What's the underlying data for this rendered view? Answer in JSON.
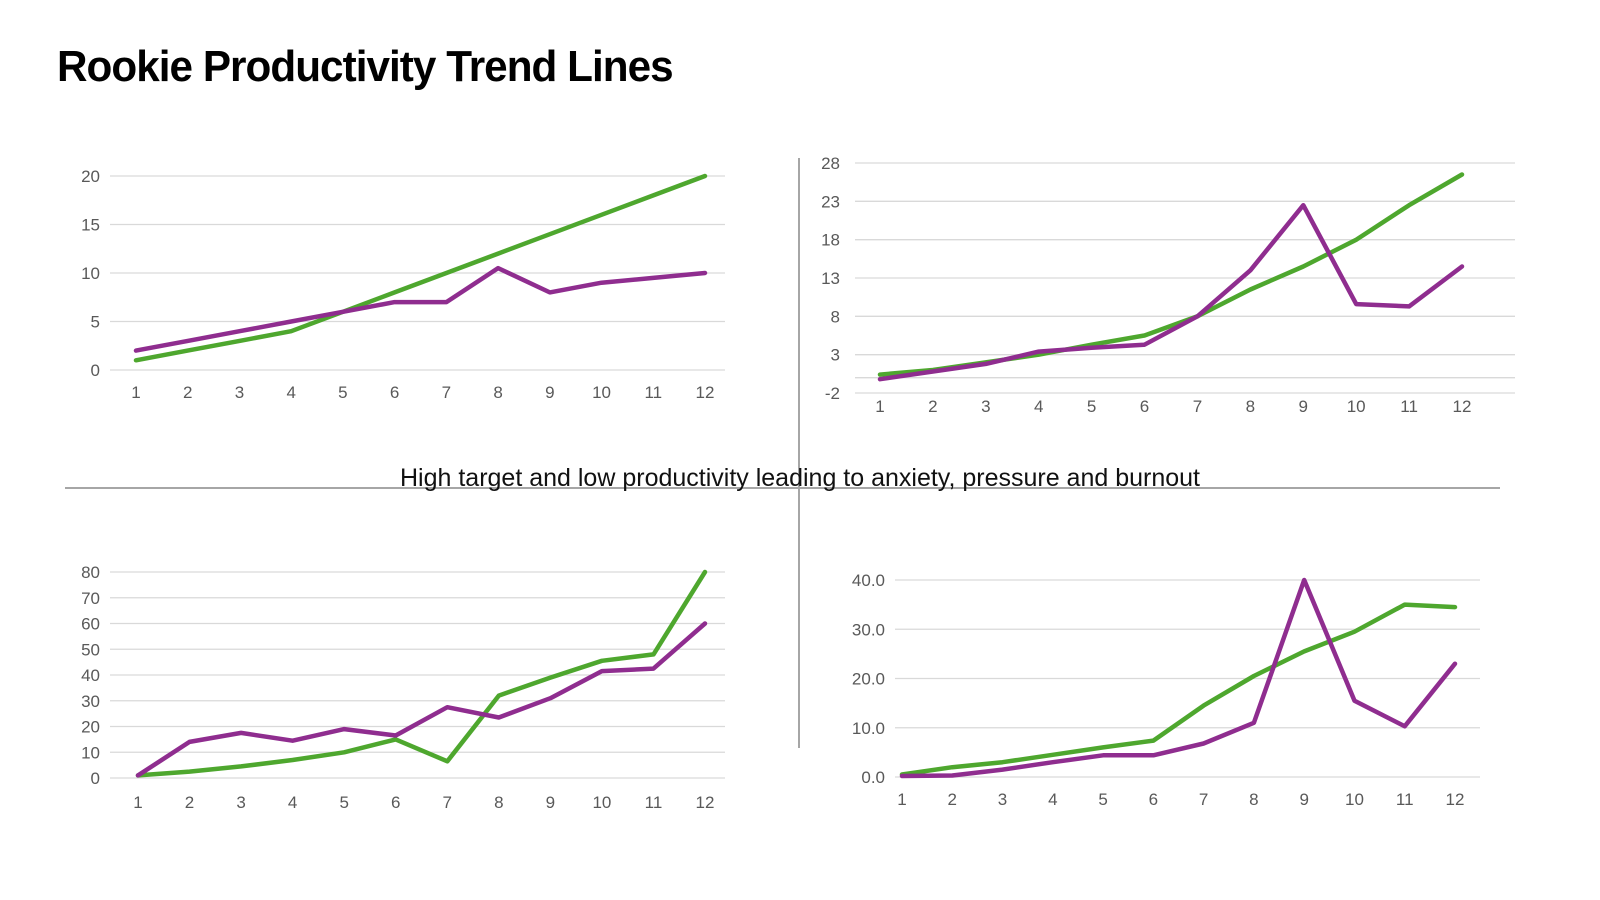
{
  "page": {
    "title": "Rookie Productivity Trend Lines",
    "caption": "High target and low productivity leading to anxiety, pressure and burnout"
  },
  "colors": {
    "green_line": "#4EA72E",
    "purple_line": "#8F2D8F",
    "gridline": "#D9D9D9",
    "axis_label": "#595959",
    "divider": "#A6A6A6",
    "title_text": "#000000",
    "caption_text": "#111111"
  },
  "chart_data": [
    {
      "id": "top-left",
      "type": "line",
      "title": "",
      "xlabel": "",
      "ylabel": "",
      "grid": true,
      "legend": "none",
      "categories": [
        "1",
        "2",
        "3",
        "4",
        "5",
        "6",
        "7",
        "8",
        "9",
        "10",
        "11",
        "12"
      ],
      "ylim": [
        0,
        20
      ],
      "y_ticks": [
        {
          "value": 0,
          "label": "0"
        },
        {
          "value": 5,
          "label": "5"
        },
        {
          "value": 10,
          "label": "10"
        },
        {
          "value": 15,
          "label": "15"
        },
        {
          "value": 20,
          "label": "20"
        }
      ],
      "series": [
        {
          "name": "green",
          "color": "#4EA72E",
          "values": [
            1,
            2,
            3,
            4,
            6,
            8,
            10,
            12,
            14,
            16,
            18,
            20
          ]
        },
        {
          "name": "purple",
          "color": "#8F2D8F",
          "values": [
            2,
            3,
            4,
            5,
            6,
            7,
            7,
            10.5,
            8,
            9,
            9.5,
            10
          ]
        }
      ]
    },
    {
      "id": "top-right",
      "type": "line",
      "title": "",
      "xlabel": "",
      "ylabel": "",
      "grid": true,
      "legend": "none",
      "zero_axis_line": true,
      "categories": [
        "1",
        "2",
        "3",
        "4",
        "5",
        "6",
        "7",
        "8",
        "9",
        "10",
        "11",
        "12"
      ],
      "ylim": [
        -2,
        28
      ],
      "y_ticks": [
        {
          "value": -2,
          "label": "-2"
        },
        {
          "value": 3,
          "label": "3"
        },
        {
          "value": 8,
          "label": "8"
        },
        {
          "value": 13,
          "label": "13"
        },
        {
          "value": 18,
          "label": "18"
        },
        {
          "value": 23,
          "label": "23"
        },
        {
          "value": 28,
          "label": "28"
        }
      ],
      "series": [
        {
          "name": "green",
          "color": "#4EA72E",
          "values": [
            0.4,
            1,
            2,
            3,
            4.3,
            5.5,
            8,
            11.5,
            14.5,
            18,
            22.5,
            26.5
          ]
        },
        {
          "name": "purple",
          "color": "#8F2D8F",
          "values": [
            -0.2,
            0.8,
            1.8,
            3.4,
            3.9,
            4.3,
            8,
            14,
            22.5,
            9.6,
            9.3,
            14.5
          ]
        }
      ]
    },
    {
      "id": "bottom-left",
      "type": "line",
      "title": "",
      "xlabel": "",
      "ylabel": "",
      "grid": true,
      "legend": "none",
      "categories": [
        "1",
        "2",
        "3",
        "4",
        "5",
        "6",
        "7",
        "8",
        "9",
        "10",
        "11",
        "12"
      ],
      "ylim": [
        0,
        80
      ],
      "y_ticks": [
        {
          "value": 0,
          "label": "0"
        },
        {
          "value": 10,
          "label": "10"
        },
        {
          "value": 20,
          "label": "20"
        },
        {
          "value": 30,
          "label": "30"
        },
        {
          "value": 40,
          "label": "40"
        },
        {
          "value": 50,
          "label": "50"
        },
        {
          "value": 60,
          "label": "60"
        },
        {
          "value": 70,
          "label": "70"
        },
        {
          "value": 80,
          "label": "80"
        }
      ],
      "series": [
        {
          "name": "green",
          "color": "#4EA72E",
          "values": [
            1,
            2.5,
            4.5,
            7,
            10,
            15,
            6.5,
            32,
            39,
            45.5,
            48,
            80
          ]
        },
        {
          "name": "purple",
          "color": "#8F2D8F",
          "values": [
            1,
            14,
            17.5,
            14.5,
            19,
            16.5,
            27.5,
            23.5,
            31,
            41.5,
            42.5,
            60
          ]
        }
      ]
    },
    {
      "id": "bottom-right",
      "type": "line",
      "title": "",
      "xlabel": "",
      "ylabel": "",
      "grid": true,
      "legend": "none",
      "categories": [
        "1",
        "2",
        "3",
        "4",
        "5",
        "6",
        "7",
        "8",
        "9",
        "10",
        "11",
        "12"
      ],
      "ylim": [
        0,
        40
      ],
      "y_ticks": [
        {
          "value": 0,
          "label": "0.0"
        },
        {
          "value": 10,
          "label": "10.0"
        },
        {
          "value": 20,
          "label": "20.0"
        },
        {
          "value": 30,
          "label": "30.0"
        },
        {
          "value": 40,
          "label": "40.0"
        }
      ],
      "series": [
        {
          "name": "green",
          "color": "#4EA72E",
          "values": [
            0.5,
            2,
            3,
            4.5,
            6,
            7.4,
            14.5,
            20.5,
            25.5,
            29.5,
            35,
            34.5
          ]
        },
        {
          "name": "purple",
          "color": "#8F2D8F",
          "values": [
            0.2,
            0.3,
            1.5,
            3,
            4.4,
            4.4,
            6.8,
            11,
            40,
            15.5,
            10.3,
            23
          ]
        }
      ]
    }
  ]
}
